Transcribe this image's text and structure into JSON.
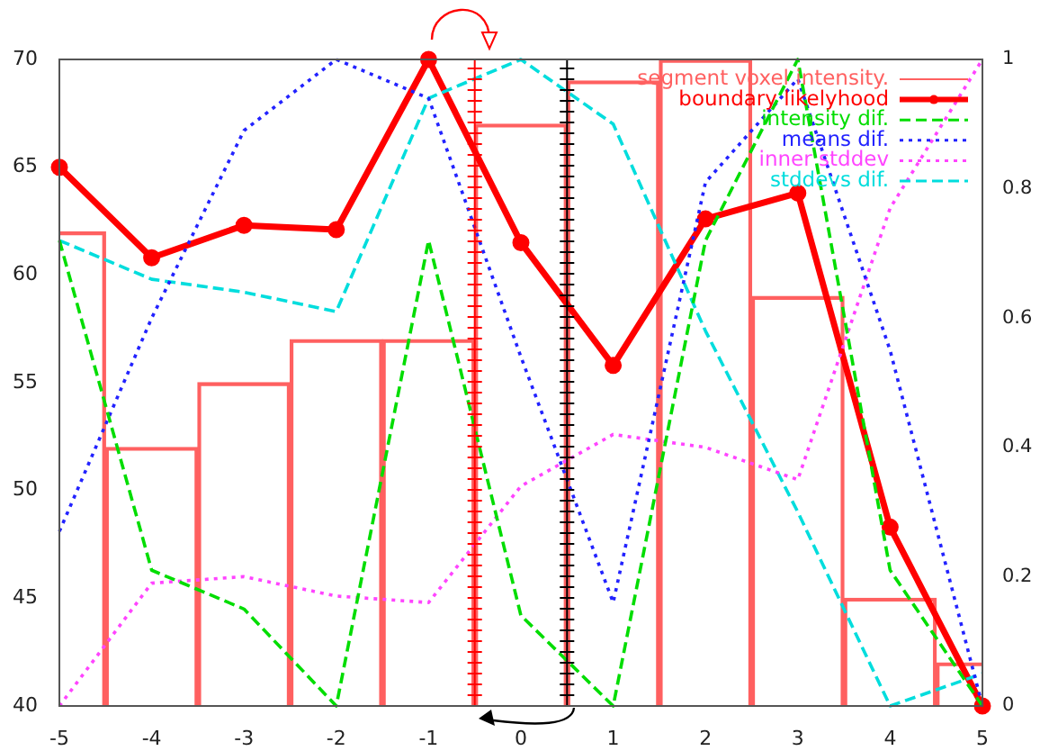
{
  "chart_data": {
    "type": "line",
    "x": [
      -5,
      -4,
      -3,
      -2,
      -1,
      0,
      1,
      2,
      3,
      4,
      5
    ],
    "xlim": [
      -5,
      5
    ],
    "xticks": [
      -5,
      -4,
      -3,
      -2,
      -1,
      0,
      1,
      2,
      3,
      4,
      5
    ],
    "ylim": [
      40,
      70
    ],
    "yticks": [
      40,
      45,
      50,
      55,
      60,
      65,
      70
    ],
    "y2lim": [
      0,
      1
    ],
    "y2ticks": [
      0,
      0.2,
      0.4,
      0.6,
      0.8,
      1
    ],
    "grid": false,
    "legend": "top right",
    "ref_lines": [
      {
        "axis": "x",
        "value": -0.5,
        "color": "#ff0000"
      },
      {
        "axis": "x",
        "value": 0.5,
        "color": "#000000"
      }
    ],
    "series": [
      {
        "name": "segment voxel intensity.",
        "type": "bar",
        "color": "#ff6060",
        "values": [
          62,
          52,
          55,
          57,
          57,
          67,
          69,
          70,
          59,
          45,
          42
        ]
      },
      {
        "name": "boundary likelyhood",
        "type": "line",
        "color": "#ff0000",
        "marker": "circle",
        "line_style": "solid",
        "values": [
          65,
          60.8,
          62.3,
          62.1,
          70,
          61.5,
          55.8,
          62.6,
          63.8,
          48.3,
          40
        ]
      },
      {
        "name": "intensity dif.",
        "type": "line",
        "axis": "y2",
        "color": "#00dd00",
        "marker": "none",
        "line_style": "dashed",
        "values": [
          0.72,
          0.21,
          0.15,
          0,
          0.72,
          0.14,
          0,
          0.72,
          1,
          0.21,
          0
        ]
      },
      {
        "name": "means dif.",
        "type": "line",
        "axis": "y2",
        "color": "#2222ff",
        "marker": "none",
        "line_style": "dotted",
        "values": [
          0.27,
          0.6,
          0.89,
          1,
          0.94,
          0.54,
          0.16,
          0.81,
          0.97,
          0.55,
          0
        ]
      },
      {
        "name": "inner stddev",
        "type": "line",
        "axis": "y2",
        "color": "#ff44ff",
        "marker": "none",
        "line_style": "dotted",
        "values": [
          0,
          0.19,
          0.2,
          0.17,
          0.16,
          0.34,
          0.42,
          0.4,
          0.35,
          0.77,
          1
        ]
      },
      {
        "name": "stddevs dif.",
        "type": "line",
        "axis": "y2",
        "color": "#00dddd",
        "marker": "none",
        "line_style": "dashed",
        "values": [
          0.72,
          0.66,
          0.64,
          0.61,
          0.94,
          1,
          0.9,
          0.58,
          0.3,
          0,
          0.05
        ]
      }
    ]
  }
}
